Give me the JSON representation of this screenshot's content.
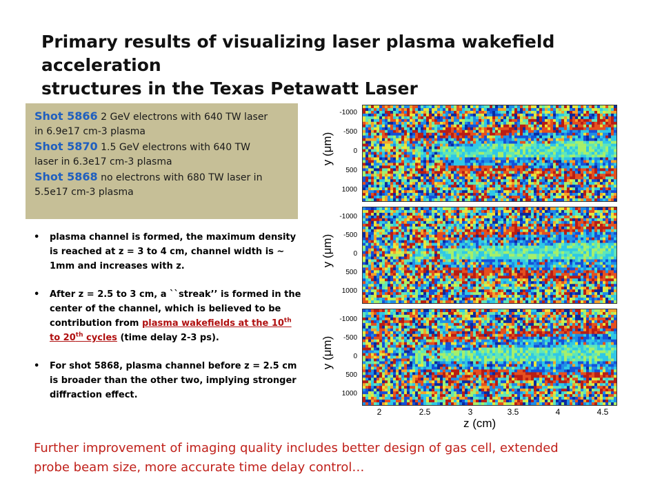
{
  "title": {
    "line1": "Primary results of visualizing laser plasma wakefield acceleration",
    "line2": "structures in the Texas Petawatt Laser"
  },
  "shots": [
    {
      "label": "Shot 5866",
      "desc_a": " 2 GeV electrons with 640 TW laser",
      "desc_b": "in 6.9e17 cm-3 plasma"
    },
    {
      "label": "Shot 5870",
      "desc_a": " 1.5 GeV electrons with 640 TW",
      "desc_b": "laser in 6.3e17 cm-3 plasma"
    },
    {
      "label": "Shot 5868",
      "desc_a": " no electrons with 680 TW laser in",
      "desc_b": "5.5e17 cm-3 plasma"
    }
  ],
  "bullets": {
    "b1": "plasma channel is formed, the maximum density is reached at z = 3 to 4 cm, channel width is ~ 1mm and increases with z.",
    "b2_pre": "After z = 2.5 to 3 cm, a ``streak’’ is formed in the center of the channel, which is believed to be contribution from ",
    "b2_link_a": "plasma wakefields at the 10",
    "b2_sup1": "th",
    "b2_link_b": " to 20",
    "b2_sup2": "th",
    "b2_link_c": " cycles",
    "b2_post": " (time delay 2-3 ps).",
    "b3": "For shot 5868, plasma channel before z = 2.5 cm is broader than the other two, implying stronger diffraction effect."
  },
  "footer": {
    "line1": "Further improvement of imaging quality includes better design of gas cell, extended",
    "line2": "probe beam size, more accurate time delay control…"
  },
  "figure": {
    "ylabel": "y (μm)",
    "yticks": [
      "-1000",
      "-500",
      "0",
      "500",
      "1000"
    ],
    "xticks": [
      "2",
      "2.5",
      "3",
      "3.5",
      "4",
      "4.5"
    ],
    "xlabel": "z (cm)"
  }
}
